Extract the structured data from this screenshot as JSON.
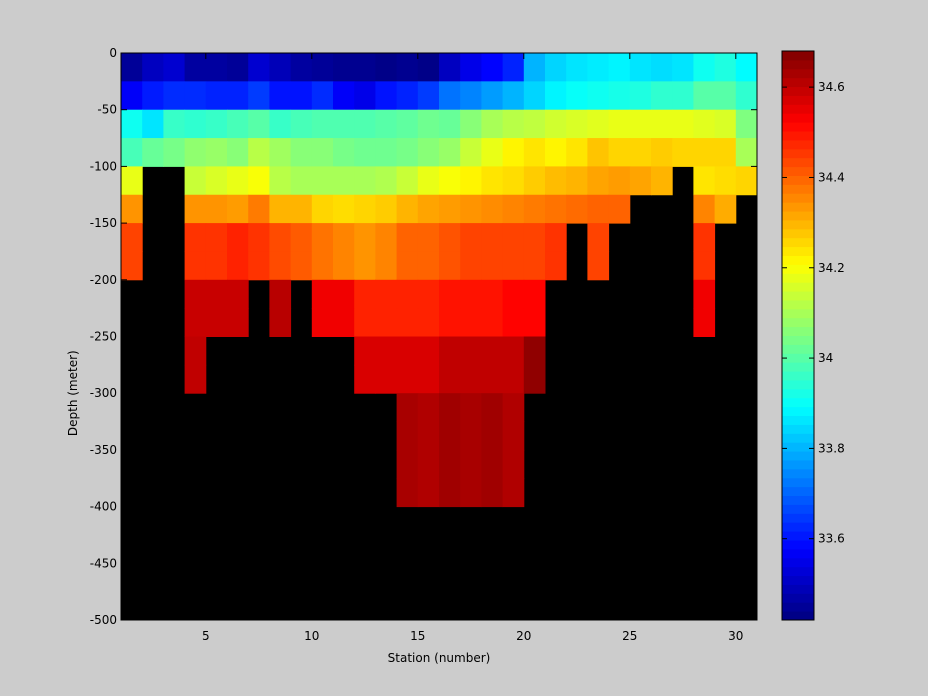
{
  "chart_data": {
    "type": "heatmap",
    "title": "",
    "xlabel": "Station (number)",
    "ylabel": "Depth (meter)",
    "xlim": [
      1,
      31
    ],
    "ylim": [
      -500,
      0
    ],
    "xticks": [
      5,
      10,
      15,
      20,
      25,
      30
    ],
    "yticks": [
      0,
      -50,
      -100,
      -150,
      -200,
      -250,
      -300,
      -350,
      -400,
      -450,
      -500
    ],
    "colorbar": {
      "colormap": "jet",
      "clim": [
        33.42,
        34.68
      ],
      "ticks": [
        33.6,
        33.8,
        34,
        34.2,
        34.4,
        34.6
      ],
      "tick_labels": [
        "33.6",
        "33.8",
        "34",
        "34.2",
        "34.4",
        "34.6"
      ]
    },
    "no_data_color": "#000000",
    "station_x": [
      1,
      2,
      3,
      4,
      5,
      6,
      7,
      8,
      9,
      10,
      11,
      12,
      13,
      14,
      15,
      16,
      17,
      18,
      19,
      20,
      21,
      22,
      23,
      24,
      25,
      26,
      27,
      28,
      29,
      30,
      31
    ],
    "depth_y": [
      0,
      -25,
      -50,
      -75,
      -100,
      -125,
      -150,
      -175,
      -200,
      -225,
      -250,
      -275,
      -300,
      -325,
      -350,
      -375,
      -400,
      -425,
      -450,
      -475,
      -500
    ],
    "rows": [
      [
        33.45,
        33.5,
        33.52,
        33.46,
        33.46,
        33.45,
        33.52,
        33.49,
        33.46,
        33.45,
        33.44,
        33.44,
        33.43,
        33.44,
        33.43,
        33.5,
        33.55,
        33.58,
        33.62,
        33.8,
        33.84,
        33.86,
        33.87,
        33.88,
        33.86,
        33.85,
        33.86,
        33.91,
        33.93,
        33.89
      ],
      [
        33.57,
        33.61,
        33.63,
        33.63,
        33.62,
        33.62,
        33.65,
        33.6,
        33.6,
        33.63,
        33.57,
        33.55,
        33.6,
        33.62,
        33.65,
        33.72,
        33.74,
        33.77,
        33.8,
        33.84,
        33.88,
        33.9,
        33.91,
        33.92,
        33.93,
        33.95,
        33.95,
        34.0,
        34.0,
        33.95
      ],
      [
        33.91,
        33.86,
        33.96,
        33.95,
        33.96,
        33.98,
        34.0,
        33.96,
        33.98,
        33.99,
        33.99,
        33.99,
        34.0,
        34.01,
        34.03,
        34.02,
        34.06,
        34.1,
        34.12,
        34.13,
        34.15,
        34.16,
        34.17,
        34.18,
        34.18,
        34.18,
        34.18,
        34.17,
        34.16,
        34.05
      ],
      [
        33.98,
        34.02,
        34.04,
        34.07,
        34.08,
        34.06,
        34.12,
        34.09,
        34.06,
        34.06,
        34.04,
        34.03,
        34.03,
        34.04,
        34.06,
        34.08,
        34.14,
        34.18,
        34.22,
        34.24,
        34.22,
        34.24,
        34.28,
        34.26,
        34.26,
        34.27,
        34.26,
        34.26,
        34.26,
        34.1
      ],
      [
        34.18,
        null,
        null,
        34.14,
        34.16,
        34.18,
        34.2,
        34.12,
        34.1,
        34.1,
        34.1,
        34.1,
        34.11,
        34.14,
        34.18,
        34.2,
        34.22,
        34.24,
        34.25,
        34.27,
        34.29,
        34.3,
        34.32,
        34.33,
        34.32,
        34.3,
        null,
        34.24,
        34.25,
        34.26
      ],
      [
        34.34,
        null,
        null,
        34.34,
        34.34,
        34.33,
        34.37,
        34.3,
        34.3,
        34.26,
        34.25,
        34.26,
        34.27,
        34.3,
        34.32,
        34.33,
        34.34,
        34.35,
        34.36,
        34.37,
        34.38,
        34.39,
        34.4,
        34.4,
        null,
        null,
        null,
        34.36,
        34.31,
        null
      ],
      [
        34.44,
        null,
        null,
        34.46,
        34.46,
        34.48,
        34.46,
        34.43,
        34.41,
        34.38,
        34.36,
        34.34,
        34.36,
        34.4,
        34.4,
        34.42,
        34.44,
        34.44,
        34.44,
        34.44,
        34.46,
        null,
        34.44,
        null,
        null,
        null,
        null,
        34.46,
        null,
        null
      ],
      [
        34.44,
        null,
        null,
        34.46,
        34.46,
        34.48,
        34.46,
        34.43,
        34.41,
        34.38,
        34.36,
        34.34,
        34.36,
        34.4,
        34.4,
        34.42,
        34.44,
        34.44,
        34.44,
        34.44,
        34.46,
        null,
        34.44,
        null,
        null,
        null,
        null,
        34.46,
        null,
        null
      ],
      [
        null,
        null,
        null,
        34.59,
        34.59,
        34.59,
        null,
        34.61,
        null,
        34.54,
        34.54,
        34.48,
        34.48,
        34.48,
        34.48,
        34.5,
        34.5,
        34.5,
        34.52,
        34.52,
        null,
        null,
        null,
        null,
        null,
        null,
        null,
        34.54,
        null,
        null
      ],
      [
        null,
        null,
        null,
        34.59,
        34.59,
        34.59,
        null,
        34.61,
        null,
        34.54,
        34.54,
        34.48,
        34.48,
        34.48,
        34.48,
        34.5,
        34.5,
        34.5,
        34.52,
        34.52,
        null,
        null,
        null,
        null,
        null,
        null,
        null,
        34.54,
        null,
        null
      ],
      [
        null,
        null,
        null,
        34.6,
        null,
        null,
        null,
        null,
        null,
        null,
        null,
        34.57,
        34.57,
        34.57,
        34.57,
        34.6,
        34.6,
        34.6,
        34.6,
        34.66,
        null,
        null,
        null,
        null,
        null,
        null,
        null,
        null,
        null,
        null
      ],
      [
        null,
        null,
        null,
        34.6,
        null,
        null,
        null,
        null,
        null,
        null,
        null,
        34.57,
        34.57,
        34.57,
        34.57,
        34.6,
        34.6,
        34.6,
        34.6,
        34.66,
        null,
        null,
        null,
        null,
        null,
        null,
        null,
        null,
        null,
        null
      ],
      [
        null,
        null,
        null,
        null,
        null,
        null,
        null,
        null,
        null,
        null,
        null,
        null,
        null,
        34.63,
        34.62,
        34.64,
        34.63,
        34.64,
        34.62,
        null,
        null,
        null,
        null,
        null,
        null,
        null,
        null,
        null,
        null,
        null
      ],
      [
        null,
        null,
        null,
        null,
        null,
        null,
        null,
        null,
        null,
        null,
        null,
        null,
        null,
        34.63,
        34.62,
        34.64,
        34.63,
        34.64,
        34.62,
        null,
        null,
        null,
        null,
        null,
        null,
        null,
        null,
        null,
        null,
        null
      ],
      [
        null,
        null,
        null,
        null,
        null,
        null,
        null,
        null,
        null,
        null,
        null,
        null,
        null,
        34.63,
        34.62,
        34.64,
        34.63,
        34.64,
        34.62,
        null,
        null,
        null,
        null,
        null,
        null,
        null,
        null,
        null,
        null,
        null
      ],
      [
        null,
        null,
        null,
        null,
        null,
        null,
        null,
        null,
        null,
        null,
        null,
        null,
        null,
        34.63,
        34.62,
        34.64,
        34.63,
        34.64,
        34.62,
        null,
        null,
        null,
        null,
        null,
        null,
        null,
        null,
        null,
        null,
        null
      ],
      [
        null,
        null,
        null,
        null,
        null,
        null,
        null,
        null,
        null,
        null,
        null,
        null,
        null,
        null,
        null,
        null,
        null,
        null,
        null,
        null,
        null,
        null,
        null,
        null,
        null,
        null,
        null,
        null,
        null,
        null
      ],
      [
        null,
        null,
        null,
        null,
        null,
        null,
        null,
        null,
        null,
        null,
        null,
        null,
        null,
        null,
        null,
        null,
        null,
        null,
        null,
        null,
        null,
        null,
        null,
        null,
        null,
        null,
        null,
        null,
        null,
        null
      ],
      [
        null,
        null,
        null,
        null,
        null,
        null,
        null,
        null,
        null,
        null,
        null,
        null,
        null,
        null,
        null,
        null,
        null,
        null,
        null,
        null,
        null,
        null,
        null,
        null,
        null,
        null,
        null,
        null,
        null,
        null
      ],
      [
        null,
        null,
        null,
        null,
        null,
        null,
        null,
        null,
        null,
        null,
        null,
        null,
        null,
        null,
        null,
        null,
        null,
        null,
        null,
        null,
        null,
        null,
        null,
        null,
        null,
        null,
        null,
        null,
        null,
        null
      ]
    ]
  }
}
